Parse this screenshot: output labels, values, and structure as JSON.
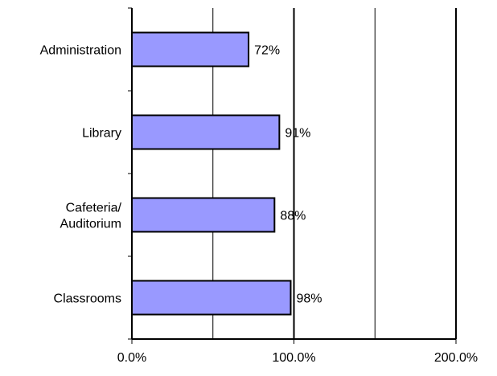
{
  "chart_data": {
    "type": "bar",
    "orientation": "horizontal",
    "categories": [
      [
        "Administration"
      ],
      [
        "Library"
      ],
      [
        "Cafeteria/",
        "Auditorium"
      ],
      [
        "Classrooms"
      ]
    ],
    "values": [
      0.72,
      0.91,
      0.88,
      0.98
    ],
    "data_labels": [
      "72%",
      "91%",
      "88%",
      "98%"
    ],
    "xlim": [
      0,
      2
    ],
    "x_ticks": [
      0,
      1,
      2
    ],
    "x_tick_labels": [
      "0.0%",
      "100.0%",
      "200.0%"
    ],
    "minor_gridlines": [
      0.5,
      1.5
    ],
    "major_gridlines": [
      1
    ],
    "grid": true,
    "legend": "none",
    "title": "",
    "xlabel": "",
    "ylabel": "",
    "colors": {
      "bar_fill": "#9999ff",
      "bar_stroke": "#000000",
      "axis": "#000000",
      "grid": "#000000",
      "background": "#ffffff"
    }
  }
}
